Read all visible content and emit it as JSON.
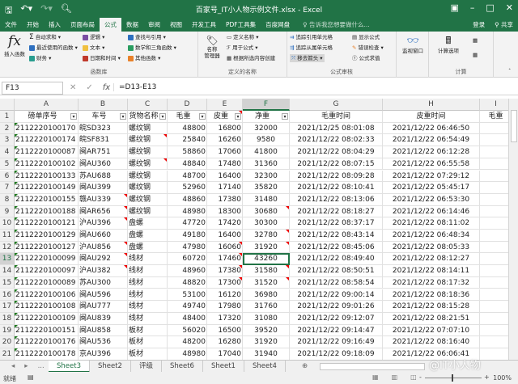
{
  "window": {
    "title": "百家号_IT小人物示例文件.xlsx - Excel",
    "qa": [
      "save-icon",
      "undo-icon",
      "redo-icon",
      "print-preview-icon"
    ],
    "controls": [
      "▣",
      "–",
      "□",
      "✕"
    ]
  },
  "tabs": [
    "文件",
    "开始",
    "插入",
    "页面布局",
    "公式",
    "数据",
    "审阅",
    "视图",
    "开发工具",
    "PDF工具集",
    "百度网盘"
  ],
  "active_tab": "公式",
  "tell_me": "♀ 告诉我您想要做什么...",
  "login": "登录",
  "share": "共享",
  "ribbon": {
    "insert_function": "插入函数",
    "lib": {
      "autosum": "自动求和 ▾",
      "recent": "最近使用的函数 ▾",
      "finance": "财务 ▾",
      "logic": "逻辑 ▾",
      "text": "文本 ▾",
      "datetime": "日期和时间 ▾",
      "lookup": "查找与引用 ▾",
      "math": "数学和三角函数 ▾",
      "other": "其他函数 ▾",
      "label": "函数库"
    },
    "names": {
      "manager": "名称\n管理器",
      "define": "定义名称 ▾",
      "use": "用于公式 ▾",
      "create": "根据所选内容创建",
      "label": "定义的名称"
    },
    "audit": {
      "precedents": "追踪引用单元格",
      "dependents": "追踪从属单元格",
      "remove": "移去箭头 ▾",
      "show": "显示公式",
      "check": "错误检查 ▾",
      "eval": "公式求值",
      "watch": "监视窗口",
      "label": "公式审核"
    },
    "calc": {
      "options": "计算选项",
      "label": "计算"
    },
    "colors": {
      "green": "#217346",
      "purple": "#7b4ea3",
      "blue": "#2e6fbf",
      "orange": "#e8812a",
      "red": "#c0392b",
      "teal": "#2a9d8f"
    }
  },
  "formula_bar": {
    "name_box": "F13",
    "cancel": "✕",
    "enter": "✓",
    "fx": "fx",
    "formula": "=D13-E13"
  },
  "columns": [
    "A",
    "B",
    "C",
    "D",
    "E",
    "F",
    "G",
    "H",
    "I"
  ],
  "selected_column": "F",
  "selected_row": 13,
  "headers": [
    "磅单序号",
    "车号",
    "货物名称",
    "毛重",
    "皮重",
    "净重",
    "毛重时间",
    "皮重时间",
    "毛重"
  ],
  "rows": [
    [
      "2112220100170",
      "皖SD323",
      "螺纹钢",
      "48800",
      "16800",
      "32000",
      "2021/12/25 08:01:08",
      "2021/12/22 06:46:50"
    ],
    [
      "2112220100174",
      "皖SF831",
      "螺纹钢",
      "25840",
      "16260",
      "9580",
      "2021/12/22 08:02:33",
      "2021/12/22 06:54:49"
    ],
    [
      "2112220100087",
      "闽AR751",
      "螺纹钢",
      "58860",
      "17060",
      "41800",
      "2021/12/22 08:04:29",
      "2021/12/22 06:12:28"
    ],
    [
      "2112220100102",
      "闽AU360",
      "螺纹钢",
      "48840",
      "17480",
      "31360",
      "2021/12/22 08:07:15",
      "2021/12/22 06:55:58"
    ],
    [
      "2112220100133",
      "苏AU688",
      "螺纹钢",
      "48700",
      "16400",
      "32300",
      "2021/12/22 08:09:28",
      "2021/12/22 07:29:12"
    ],
    [
      "2112220100149",
      "闽AU399",
      "螺纹钢",
      "52960",
      "17140",
      "35820",
      "2021/12/22 08:10:41",
      "2021/12/22 05:45:17"
    ],
    [
      "2112220100155",
      "赣AU339",
      "螺纹钢",
      "48860",
      "17380",
      "31480",
      "2021/12/22 08:13:06",
      "2021/12/22 06:53:30"
    ],
    [
      "2112220100188",
      "闽AR656",
      "螺纹钢",
      "48980",
      "18300",
      "30680",
      "2021/12/22 08:18:27",
      "2021/12/22 06:14:46"
    ],
    [
      "2112220100121",
      "沪AU396",
      "盘螺",
      "47720",
      "17420",
      "30300",
      "2021/12/22 08:37:17",
      "2021/12/22 08:11:02"
    ],
    [
      "2112220100129",
      "闽AU660",
      "盘螺",
      "49180",
      "16400",
      "32780",
      "2021/12/22 08:43:14",
      "2021/12/22 06:48:34"
    ],
    [
      "2112220100127",
      "沪AU856",
      "盘螺",
      "47980",
      "16060",
      "31920",
      "2021/12/22 08:45:06",
      "2021/12/22 08:05:33"
    ],
    [
      "2112220100099",
      "闽AU292",
      "线材",
      "60720",
      "17460",
      "43260",
      "2021/12/22 08:49:40",
      "2021/12/22 08:12:27"
    ],
    [
      "2112220100097",
      "沪AU382",
      "线材",
      "48960",
      "17380",
      "31580",
      "2021/12/22 08:50:51",
      "2021/12/22 08:14:11"
    ],
    [
      "2112220100089",
      "苏AU300",
      "线材",
      "48820",
      "17300",
      "31520",
      "2021/12/22 08:58:54",
      "2021/12/22 08:17:32"
    ],
    [
      "2112220100106",
      "闽AU596",
      "线材",
      "53100",
      "16120",
      "36980",
      "2021/12/22 09:00:14",
      "2021/12/22 08:18:36"
    ],
    [
      "2112220100108",
      "闽AU777",
      "线材",
      "49740",
      "17980",
      "31760",
      "2021/12/22 09:01:26",
      "2021/12/22 08:15:28"
    ],
    [
      "2112220100109",
      "闽AU839",
      "线材",
      "48400",
      "17320",
      "31080",
      "2021/12/22 09:12:07",
      "2021/12/22 08:21:51"
    ],
    [
      "2112220100151",
      "闽AU858",
      "板材",
      "56020",
      "16500",
      "39520",
      "2021/12/22 09:14:47",
      "2021/12/22 07:07:10"
    ],
    [
      "2112220100176",
      "闽AU536",
      "板材",
      "48200",
      "16280",
      "31920",
      "2021/12/22 09:16:49",
      "2021/12/22 08:16:40"
    ],
    [
      "2112220100178",
      "京AU396",
      "板材",
      "48980",
      "17040",
      "31940",
      "2021/12/22 09:18:09",
      "2021/12/22 06:06:41"
    ]
  ],
  "sheets": [
    "Sheet3",
    "Sheet2",
    "评级",
    "Sheet6",
    "Sheet1",
    "Sheet4"
  ],
  "active_sheet": "Sheet3",
  "sheet_nav": [
    "◂",
    "▸",
    "..."
  ],
  "add_sheet": "⊕",
  "status": {
    "ready": "就绪",
    "zoom": "100%",
    "zoom_minus": "-",
    "zoom_plus": "+"
  },
  "watermark": "@IT小人物"
}
